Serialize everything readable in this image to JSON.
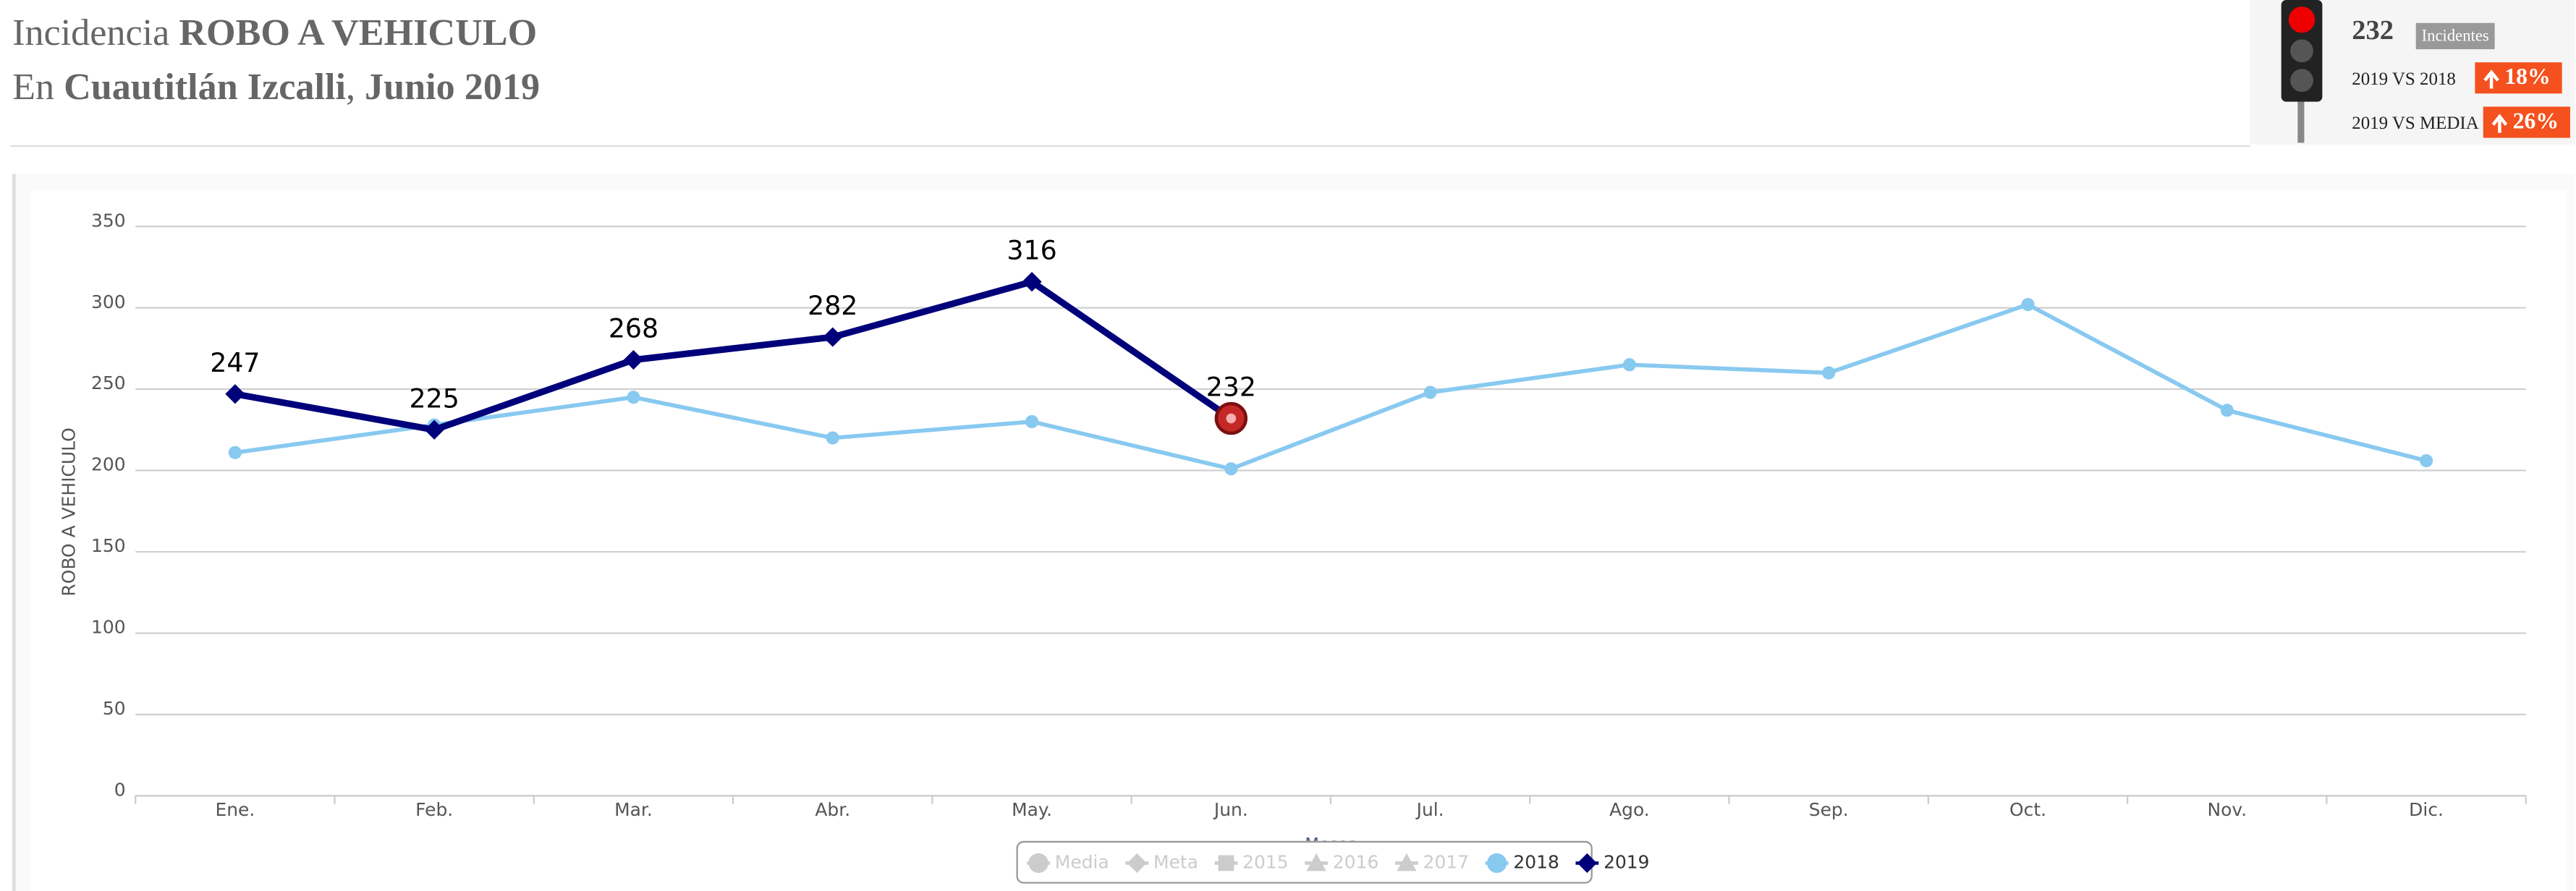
{
  "header": {
    "title_prefix": "Incidencia",
    "title_bold": "ROBO A VEHICULO",
    "subtitle_prefix": "En",
    "subtitle_place": "Cuautitlán Izcalli",
    "subtitle_date": "Junio 2019"
  },
  "indicator": {
    "count": "232",
    "count_unit": "Incidentes",
    "rows": [
      {
        "label": "2019 VS 2018",
        "change": "18%"
      },
      {
        "label": "2019 VS MEDIA",
        "change": "26%"
      }
    ]
  },
  "chart_data": {
    "type": "line",
    "ylabel": "ROBO A VEHICULO",
    "xlabel": "Meses",
    "categories": [
      "Ene.",
      "Feb.",
      "Mar.",
      "Abr.",
      "May.",
      "Jun.",
      "Jul.",
      "Ago.",
      "Sep.",
      "Oct.",
      "Nov.",
      "Dic."
    ],
    "ylim": [
      0,
      350
    ],
    "yticks": [
      0,
      50,
      100,
      150,
      200,
      250,
      300,
      350
    ],
    "grid": true,
    "series": [
      {
        "name": "Media",
        "color": "#cccccc",
        "visible": false,
        "marker": "circle",
        "values": [
          null,
          null,
          null,
          null,
          null,
          null,
          null,
          null,
          null,
          null,
          null,
          null
        ]
      },
      {
        "name": "Meta",
        "color": "#cccccc",
        "visible": false,
        "marker": "diamond",
        "values": [
          null,
          null,
          null,
          null,
          null,
          null,
          null,
          null,
          null,
          null,
          null,
          null
        ]
      },
      {
        "name": "2015",
        "color": "#cccccc",
        "visible": false,
        "marker": "square",
        "values": [
          null,
          null,
          null,
          null,
          null,
          null,
          null,
          null,
          null,
          null,
          null,
          null
        ]
      },
      {
        "name": "2016",
        "color": "#cccccc",
        "visible": false,
        "marker": "triangle",
        "values": [
          null,
          null,
          null,
          null,
          null,
          null,
          null,
          null,
          null,
          null,
          null,
          null
        ]
      },
      {
        "name": "2017",
        "color": "#cccccc",
        "visible": false,
        "marker": "triangle",
        "values": [
          null,
          null,
          null,
          null,
          null,
          null,
          null,
          null,
          null,
          null,
          null,
          null
        ]
      },
      {
        "name": "2018",
        "color": "#88c9f0",
        "visible": true,
        "marker": "circle",
        "values": [
          211,
          228,
          245,
          220,
          230,
          201,
          248,
          265,
          260,
          302,
          237,
          206
        ]
      },
      {
        "name": "2019",
        "color": "#00007a",
        "visible": true,
        "marker": "diamond",
        "show_labels": true,
        "last_marker_color": "#c62828",
        "values": [
          247,
          225,
          268,
          282,
          316,
          232,
          null,
          null,
          null,
          null,
          null,
          null
        ]
      }
    ]
  }
}
